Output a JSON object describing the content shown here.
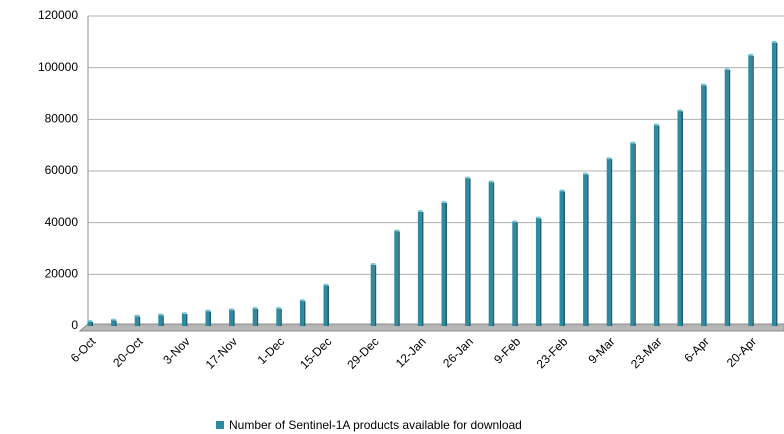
{
  "chart_data": {
    "type": "bar",
    "categories": [
      "6-Oct",
      null,
      "20-Oct",
      null,
      "3-Nov",
      null,
      "17-Nov",
      null,
      "1-Dec",
      null,
      "15-Dec",
      null,
      "29-Dec",
      null,
      "12-Jan",
      null,
      "26-Jan",
      null,
      "9-Feb",
      null,
      "23-Feb",
      null,
      "9-Mar",
      null,
      "23-Mar",
      null,
      "6-Apr",
      null,
      "20-Apr",
      null
    ],
    "series": [
      {
        "name": "Number of Sentinel-1A products available for download",
        "color": "#2e8a9e",
        "values": [
          2000,
          2500,
          4000,
          4500,
          5000,
          6000,
          6500,
          7000,
          7000,
          10000,
          16000,
          null,
          24000,
          37000,
          44500,
          48000,
          57500,
          56000,
          40500,
          42000,
          52500,
          59000,
          65000,
          71000,
          78000,
          83500,
          93500,
          99500,
          105000,
          110000
        ]
      }
    ],
    "ylim": [
      0,
      120000
    ],
    "yticks": [
      0,
      20000,
      40000,
      60000,
      80000,
      100000,
      120000
    ],
    "grid": true,
    "legend": "bottom"
  }
}
